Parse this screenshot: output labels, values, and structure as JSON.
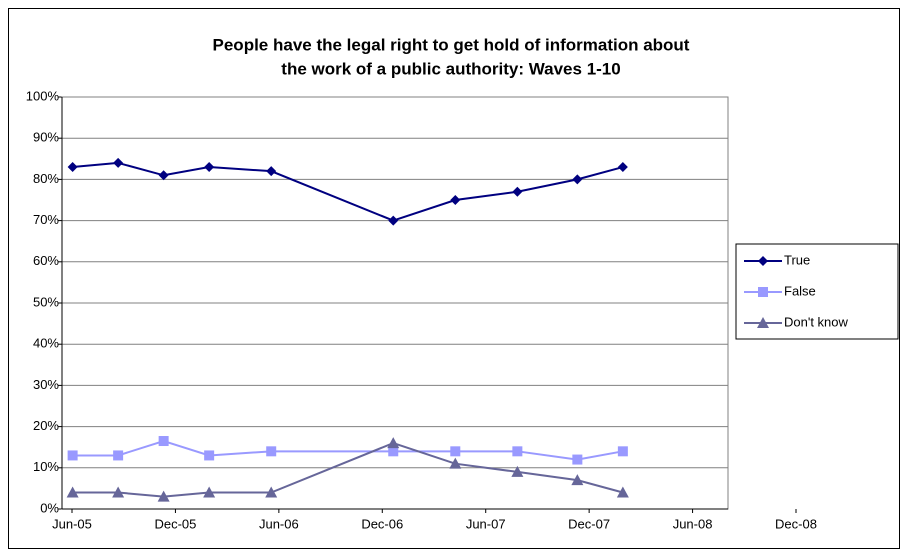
{
  "chart_data": {
    "type": "line",
    "title": [
      "People have the legal right to get hold of information about",
      "the work of a public authority: Waves 1-10"
    ],
    "x": [
      2005.42,
      2005.64,
      2005.86,
      2006.08,
      2006.38,
      2006.97,
      2007.27,
      2007.57,
      2007.86,
      2008.08
    ],
    "series": [
      {
        "name": "True",
        "color": "#000080",
        "marker": "diamond",
        "values": [
          83,
          84,
          81,
          83,
          82,
          70,
          75,
          77,
          80,
          83
        ]
      },
      {
        "name": "False",
        "color": "#9999ff",
        "marker": "square",
        "values": [
          13,
          13,
          16.5,
          13,
          14,
          14,
          14,
          14,
          12,
          14
        ]
      },
      {
        "name": "Don't know",
        "color": "#666699",
        "marker": "triangle",
        "values": [
          4,
          4,
          3,
          4,
          4,
          16,
          11,
          9,
          7,
          4
        ]
      }
    ],
    "xlim": [
      2005.417,
      2008.917
    ],
    "xticks": [
      {
        "value": 2005.417,
        "label": "Jun-05"
      },
      {
        "value": 2005.917,
        "label": "Dec-05"
      },
      {
        "value": 2006.417,
        "label": "Jun-06"
      },
      {
        "value": 2006.917,
        "label": "Dec-06"
      },
      {
        "value": 2007.417,
        "label": "Jun-07"
      },
      {
        "value": 2007.917,
        "label": "Dec-07"
      },
      {
        "value": 2008.417,
        "label": "Jun-08"
      },
      {
        "value": 2008.917,
        "label": "Dec-08"
      }
    ],
    "ylim": [
      0,
      100
    ],
    "yticks": [
      {
        "value": 0,
        "label": "0%"
      },
      {
        "value": 10,
        "label": "10%"
      },
      {
        "value": 20,
        "label": "20%"
      },
      {
        "value": 30,
        "label": "30%"
      },
      {
        "value": 40,
        "label": "40%"
      },
      {
        "value": 50,
        "label": "50%"
      },
      {
        "value": 60,
        "label": "60%"
      },
      {
        "value": 70,
        "label": "70%"
      },
      {
        "value": 80,
        "label": "80%"
      },
      {
        "value": 90,
        "label": "90%"
      },
      {
        "value": 100,
        "label": "100%"
      }
    ],
    "grid": true,
    "legend": "right"
  }
}
